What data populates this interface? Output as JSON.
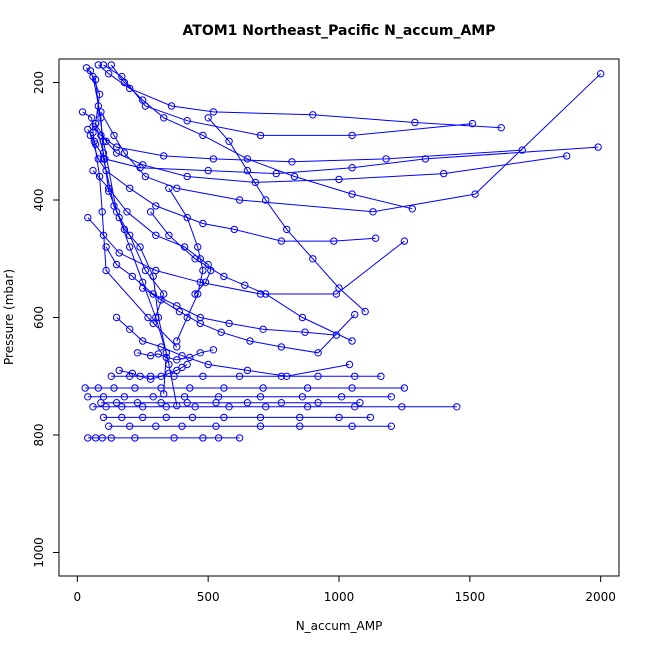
{
  "chart_data": {
    "type": "line",
    "title": "ATOM1 Northeast_Pacific N_accum_AMP",
    "xlabel": "N_accum_AMP",
    "ylabel": "Pressure (mbar)",
    "xlim": [
      -70,
      2070
    ],
    "ylim": [
      1040,
      160
    ],
    "y_reversed": true,
    "x_ticks": [
      0,
      500,
      1000,
      1500,
      2000
    ],
    "y_ticks": [
      200,
      400,
      600,
      800,
      1000
    ],
    "grid": false,
    "color": "#0000ff",
    "marker": "open-circle",
    "series": [
      {
        "x": [
          20,
          55,
          60,
          65,
          85,
          95,
          110,
          270,
          380
        ],
        "y": [
          250,
          260,
          285,
          300,
          360,
          420,
          520,
          600,
          650
        ]
      },
      {
        "x": [
          35,
          70,
          80,
          100,
          150,
          200,
          260,
          330,
          290
        ],
        "y": [
          175,
          195,
          240,
          300,
          420,
          460,
          520,
          560,
          610
        ]
      },
      {
        "x": [
          50,
          85,
          70,
          100,
          120,
          160,
          200,
          250,
          300,
          340,
          330
        ],
        "y": [
          180,
          220,
          270,
          320,
          385,
          430,
          480,
          540,
          600,
          660,
          730
        ]
      },
      {
        "x": [
          60,
          90,
          100,
          140,
          180,
          240,
          290,
          310,
          350,
          380
        ],
        "y": [
          190,
          260,
          330,
          410,
          450,
          480,
          530,
          600,
          680,
          750
        ]
      },
      {
        "x": [
          80,
          120,
          200,
          360,
          520,
          900,
          1290,
          1620
        ],
        "y": [
          170,
          185,
          210,
          240,
          250,
          255,
          268,
          277
        ]
      },
      {
        "x": [
          100,
          170,
          260,
          420,
          700,
          1050,
          1510
        ],
        "y": [
          170,
          190,
          240,
          265,
          290,
          290,
          270
        ]
      },
      {
        "x": [
          60,
          90,
          150,
          330,
          520,
          820,
          1180,
          1700
        ],
        "y": [
          275,
          290,
          310,
          325,
          330,
          335,
          330,
          315
        ]
      },
      {
        "x": [
          40,
          70,
          105,
          240,
          500,
          760,
          1050,
          1330,
          1990
        ],
        "y": [
          280,
          305,
          330,
          345,
          350,
          355,
          345,
          330,
          310
        ]
      },
      {
        "x": [
          70,
          110,
          150,
          250,
          420,
          680,
          1000,
          1400,
          1870
        ],
        "y": [
          270,
          300,
          320,
          340,
          360,
          370,
          365,
          355,
          325
        ]
      },
      {
        "x": [
          90,
          140,
          180,
          260,
          380,
          620,
          1130,
          1520,
          2000
        ],
        "y": [
          250,
          290,
          320,
          360,
          380,
          400,
          420,
          390,
          185
        ]
      },
      {
        "x": [
          50,
          80,
          110,
          200,
          300,
          480,
          600,
          780,
          980,
          1140
        ],
        "y": [
          290,
          330,
          350,
          380,
          410,
          440,
          450,
          470,
          470,
          465
        ]
      },
      {
        "x": [
          130,
          180,
          250,
          330,
          480,
          650,
          830,
          1050,
          1280
        ],
        "y": [
          170,
          200,
          230,
          260,
          290,
          330,
          360,
          390,
          415
        ]
      },
      {
        "x": [
          40,
          100,
          160,
          300,
          470,
          700,
          990,
          1250
        ],
        "y": [
          430,
          460,
          490,
          520,
          540,
          560,
          560,
          470
        ]
      },
      {
        "x": [
          60,
          120,
          190,
          300,
          410,
          470,
          500,
          510,
          490,
          450
        ],
        "y": [
          350,
          380,
          420,
          460,
          480,
          500,
          510,
          520,
          540,
          560
        ]
      },
      {
        "x": [
          110,
          150,
          210,
          290,
          380,
          470,
          580,
          710,
          870,
          990
        ],
        "y": [
          480,
          510,
          530,
          560,
          580,
          600,
          610,
          620,
          625,
          630
        ]
      },
      {
        "x": [
          250,
          320,
          390,
          470,
          550,
          660,
          780,
          920,
          1060
        ],
        "y": [
          550,
          570,
          590,
          610,
          625,
          640,
          650,
          660,
          595
        ]
      },
      {
        "x": [
          150,
          200,
          250,
          320,
          400,
          500,
          650,
          800,
          1040
        ],
        "y": [
          600,
          620,
          640,
          650,
          665,
          680,
          690,
          700,
          680
        ]
      },
      {
        "x": [
          280,
          350,
          450,
          560,
          640,
          720,
          860,
          1050
        ],
        "y": [
          420,
          460,
          500,
          530,
          545,
          560,
          600,
          640
        ]
      },
      {
        "x": [
          500,
          580,
          650,
          720,
          800,
          900,
          1000,
          1100
        ],
        "y": [
          260,
          300,
          350,
          400,
          450,
          500,
          550,
          590
        ]
      },
      {
        "x": [
          350,
          420,
          460,
          480,
          460,
          420,
          380
        ],
        "y": [
          380,
          430,
          480,
          520,
          560,
          600,
          640
        ]
      },
      {
        "x": [
          30,
          80,
          140,
          220,
          320,
          430,
          560,
          710,
          880,
          1050,
          1250
        ],
        "y": [
          720,
          720,
          720,
          720,
          720,
          720,
          720,
          720,
          720,
          720,
          720
        ]
      },
      {
        "x": [
          40,
          100,
          180,
          290,
          410,
          540,
          700,
          860,
          1010,
          1200
        ],
        "y": [
          735,
          735,
          735,
          735,
          735,
          735,
          735,
          735,
          735,
          735
        ]
      },
      {
        "x": [
          60,
          110,
          170,
          250,
          340,
          450,
          580,
          720,
          880,
          1060,
          1240,
          1450
        ],
        "y": [
          752,
          752,
          752,
          752,
          752,
          752,
          752,
          752,
          752,
          752,
          752,
          752
        ]
      },
      {
        "x": [
          90,
          150,
          230,
          320,
          420,
          530,
          650,
          780,
          920,
          1080
        ],
        "y": [
          745,
          745,
          745,
          745,
          745,
          745,
          745,
          745,
          745,
          745
        ]
      },
      {
        "x": [
          130,
          200,
          280,
          370,
          480,
          620,
          780,
          920,
          1060,
          1160
        ],
        "y": [
          700,
          700,
          700,
          700,
          700,
          700,
          700,
          700,
          700,
          700
        ]
      },
      {
        "x": [
          100,
          170,
          250,
          340,
          440,
          560,
          700,
          850,
          1000,
          1120
        ],
        "y": [
          770,
          770,
          770,
          770,
          770,
          770,
          770,
          770,
          770,
          770
        ]
      },
      {
        "x": [
          120,
          200,
          300,
          400,
          530,
          700,
          850,
          1050,
          1200
        ],
        "y": [
          785,
          785,
          785,
          785,
          785,
          785,
          785,
          785,
          785
        ]
      },
      {
        "x": [
          40,
          70,
          95,
          130,
          220,
          370,
          480,
          540,
          620
        ],
        "y": [
          805,
          805,
          805,
          805,
          805,
          805,
          805,
          805,
          805
        ]
      },
      {
        "x": [
          160,
          210,
          240,
          280,
          320,
          350,
          380,
          400,
          420
        ],
        "y": [
          690,
          695,
          700,
          705,
          700,
          695,
          690,
          685,
          680
        ]
      },
      {
        "x": [
          230,
          280,
          310,
          340,
          380,
          430,
          470,
          520
        ],
        "y": [
          660,
          665,
          662,
          668,
          672,
          668,
          660,
          655
        ]
      }
    ]
  }
}
